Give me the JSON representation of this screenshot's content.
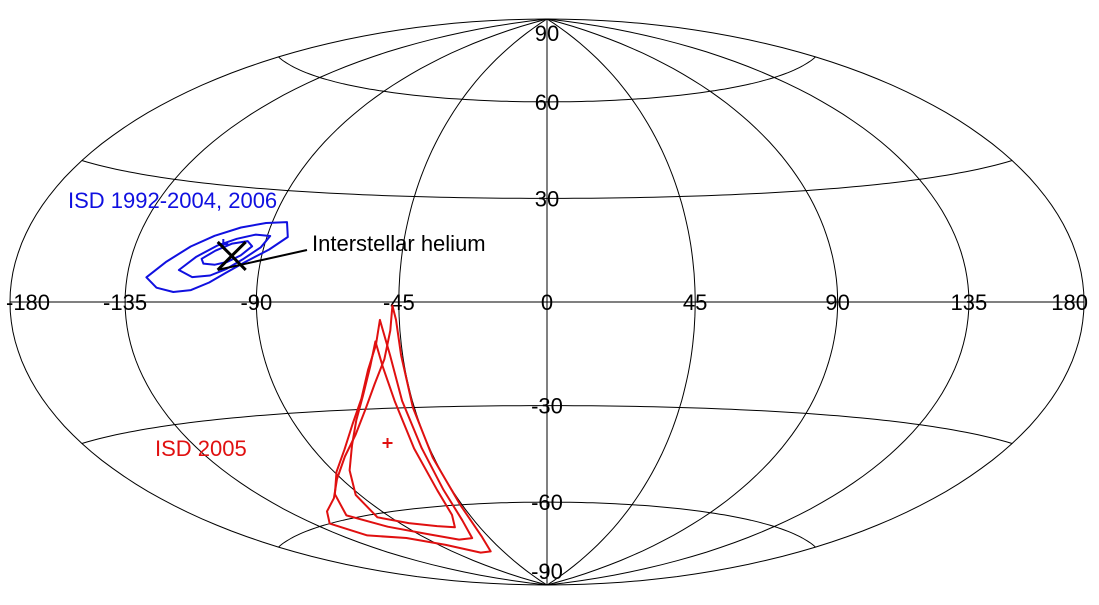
{
  "chart_data": {
    "type": "contour",
    "projection": "hammer-aitoff",
    "grid": true,
    "xlim": [
      -180,
      180
    ],
    "ylim": [
      -90,
      90
    ],
    "x_ticks": [
      -180,
      -135,
      -90,
      -45,
      0,
      45,
      90,
      135,
      180
    ],
    "x_tick_labels": [
      "-180",
      "-135",
      "-90",
      "-45",
      "0",
      "45",
      "90",
      "135",
      "180"
    ],
    "y_ticks": [
      90,
      60,
      30,
      -30,
      -60,
      -90
    ],
    "y_tick_labels": [
      "90",
      "60",
      "30",
      "-30",
      "-60",
      "-90"
    ],
    "meridians": [
      -135,
      -90,
      -45,
      0,
      45,
      90,
      135
    ],
    "parallels": [
      -60,
      -30,
      30,
      60
    ],
    "colors": {
      "grid": "#000000",
      "blue": "#1010e0",
      "red": "#e01010",
      "marker": "#000000"
    },
    "series": [
      {
        "name": "ISD 1992-2004, 2006",
        "color": "#1010e0",
        "center": {
          "lon": -104,
          "lat": 15,
          "marker": "+"
        },
        "contours": [
          [
            [
              -128,
              6
            ],
            [
              -122,
              10
            ],
            [
              -115,
              14
            ],
            [
              -108,
              17
            ],
            [
              -100,
              19.5
            ],
            [
              -92,
              21
            ],
            [
              -85,
              21.5
            ],
            [
              -83,
              17.5
            ],
            [
              -88,
              14
            ],
            [
              -95,
              10.5
            ],
            [
              -101,
              7.5
            ],
            [
              -106,
              5
            ],
            [
              -112,
              3
            ],
            [
              -118,
              2.5
            ],
            [
              -124,
              3.5
            ]
          ],
          [
            [
              -117,
              8
            ],
            [
              -112,
              11.5
            ],
            [
              -106,
              14.5
            ],
            [
              -100,
              16.5
            ],
            [
              -94,
              17.8
            ],
            [
              -89,
              17.6
            ],
            [
              -91,
              14.5
            ],
            [
              -96,
              11.2
            ],
            [
              -101,
              8.5
            ],
            [
              -106,
              6.8
            ],
            [
              -112,
              6.3
            ]
          ],
          [
            [
              -110,
              11
            ],
            [
              -106,
              13.2
            ],
            [
              -101,
              15.2
            ],
            [
              -96,
              16
            ],
            [
              -94,
              14.7
            ],
            [
              -97,
              12.2
            ],
            [
              -101,
              10.4
            ],
            [
              -105,
              9.6
            ],
            [
              -109,
              9.8
            ]
          ]
        ]
      },
      {
        "name": "ISD 2005",
        "color": "#e01010",
        "center": {
          "lon": -60,
          "lat": -40,
          "marker": "+"
        },
        "contours": [
          [
            [
              -47,
              -1
            ],
            [
              -48,
              -8
            ],
            [
              -51,
              -16
            ],
            [
              -56,
              -23
            ],
            [
              -62,
              -30
            ],
            [
              -70,
              -37
            ],
            [
              -80,
              -43
            ],
            [
              -92,
              -49
            ],
            [
              -104,
              -54
            ],
            [
              -117,
              -57
            ],
            [
              -127,
              -60
            ],
            [
              -121,
              -65
            ],
            [
              -102,
              -68
            ],
            [
              -85,
              -72
            ],
            [
              -68,
              -76
            ],
            [
              -57,
              -76
            ],
            [
              -50,
              -71
            ],
            [
              -46,
              -60
            ],
            [
              -45.5,
              -45
            ],
            [
              -45.5,
              -30
            ],
            [
              -45.5,
              -15
            ],
            [
              -46,
              -5
            ]
          ],
          [
            [
              -51,
              -5
            ],
            [
              -53,
              -12
            ],
            [
              -57,
              -19
            ],
            [
              -62,
              -27
            ],
            [
              -69,
              -34
            ],
            [
              -78,
              -41
            ],
            [
              -89,
              -47
            ],
            [
              -101,
              -53
            ],
            [
              -111,
              -59
            ],
            [
              -100,
              -64
            ],
            [
              -84,
              -68
            ],
            [
              -69,
              -71
            ],
            [
              -58,
              -71
            ],
            [
              -52,
              -65
            ],
            [
              -49,
              -55
            ],
            [
              -48,
              -42
            ],
            [
              -48.5,
              -28
            ],
            [
              -49,
              -15
            ]
          ],
          [
            [
              -53,
              -11
            ],
            [
              -56,
              -18
            ],
            [
              -61,
              -26
            ],
            [
              -67,
              -33
            ],
            [
              -74,
              -40
            ],
            [
              -83,
              -47
            ],
            [
              -92,
              -54
            ],
            [
              -97,
              -61
            ],
            [
              -85,
              -64
            ],
            [
              -71,
              -66
            ],
            [
              -61,
              -67
            ],
            [
              -55,
              -63
            ],
            [
              -52,
              -55
            ],
            [
              -51,
              -42
            ],
            [
              -51,
              -28
            ],
            [
              -52,
              -18
            ]
          ]
        ]
      }
    ],
    "annotations": [
      {
        "text": "ISD 1992-2004, 2006",
        "color": "#1010e0"
      },
      {
        "text": "Interstellar helium",
        "color": "#000000",
        "lon": -100,
        "lat": 12,
        "marker": "x"
      },
      {
        "text": "ISD 2005",
        "color": "#e01010"
      }
    ]
  }
}
